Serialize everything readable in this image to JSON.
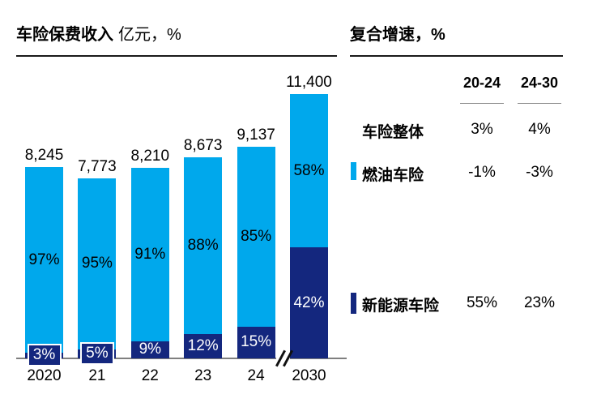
{
  "left_panel": {
    "title_bold": "车险保费收入",
    "title_unit": "亿元，%"
  },
  "right_panel": {
    "title": "复合增速，%",
    "col_headers": [
      "20-24",
      "24-30"
    ],
    "rows": [
      {
        "label": "车险整体",
        "v1": "3%",
        "v2": "4%",
        "marker_color": ""
      },
      {
        "label": "燃油车险",
        "v1": "-1%",
        "v2": "-3%",
        "marker_color": "#00A8EC"
      },
      {
        "label": "新能源车险",
        "v1": "55%",
        "v2": "23%",
        "marker_color": "#14277E"
      }
    ]
  },
  "chart_data": {
    "type": "bar",
    "stacked": true,
    "title": "车险保费收入",
    "unit": "亿元，%",
    "categories": [
      "2020",
      "21",
      "22",
      "23",
      "24",
      "2030"
    ],
    "totals": [
      8245,
      7773,
      8210,
      8673,
      9137,
      11400
    ],
    "total_labels": [
      "8,245",
      "7,773",
      "8,210",
      "8,673",
      "9,137",
      "11,400"
    ],
    "series": [
      {
        "name": "燃油车险",
        "color": "#00A8EC",
        "unit": "%",
        "values": [
          97,
          95,
          91,
          88,
          85,
          58
        ],
        "labels": [
          "97%",
          "95%",
          "91%",
          "88%",
          "85%",
          "58%"
        ]
      },
      {
        "name": "新能源车险",
        "color": "#14277E",
        "unit": "%",
        "values": [
          3,
          5,
          9,
          12,
          15,
          42
        ],
        "labels": [
          "3%",
          "5%",
          "9%",
          "12%",
          "15%",
          "42%"
        ]
      }
    ],
    "axis_break_before": "2030",
    "ylim": [
      0,
      11400
    ],
    "grid": false,
    "legend_position": "right-table"
  },
  "colors": {
    "bar_light": "#00A8EC",
    "bar_dark": "#14277E",
    "axis": "#7f7f7f",
    "rule": "#1a1a1a",
    "text": "#000000"
  }
}
